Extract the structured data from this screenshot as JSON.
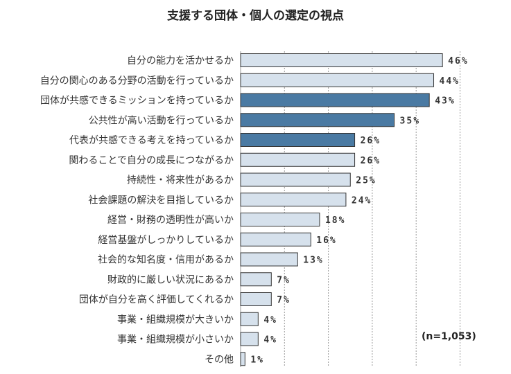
{
  "chart_data": {
    "type": "bar",
    "orientation": "horizontal",
    "title": "支援する団体・個人の選定の視点",
    "categories": [
      "自分の能力を活かせるか",
      "自分の関心のある分野の活動を行っているか",
      "団体が共感できるミッションを持っているか",
      "公共性が高い活動を行っているか",
      "代表が共感できる考えを持っているか",
      "関わることで自分の成長につながるか",
      "持続性・将来性があるか",
      "社会課題の解決を目指しているか",
      "経営・財務の透明性が高いか",
      "経営基盤がしっかりしているか",
      "社会的な知名度・信用があるか",
      "財政的に厳しい状況にあるか",
      "団体が自分を高く評価してくれるか",
      "事業・組織規模が大きいか",
      "事業・組織規模が小さいか",
      "その他"
    ],
    "values": [
      46,
      44,
      43,
      35,
      26,
      26,
      25,
      24,
      18,
      16,
      13,
      7,
      7,
      4,
      4,
      1
    ],
    "value_labels": [
      "46%",
      "44%",
      "43%",
      "35%",
      "26%",
      "26%",
      "25%",
      "24%",
      "18%",
      "16%",
      "13%",
      "7%",
      "7%",
      "4%",
      "4%",
      "1%"
    ],
    "highlight": [
      false,
      false,
      true,
      true,
      true,
      false,
      false,
      false,
      false,
      false,
      false,
      false,
      false,
      false,
      false,
      false
    ],
    "xlim": [
      0,
      50
    ],
    "grid": true,
    "colors": {
      "bar": "#d6e1ec",
      "highlight": "#4a7aa3",
      "border": "#333333",
      "grid": "#999999"
    },
    "note": "(n=1,053)"
  }
}
